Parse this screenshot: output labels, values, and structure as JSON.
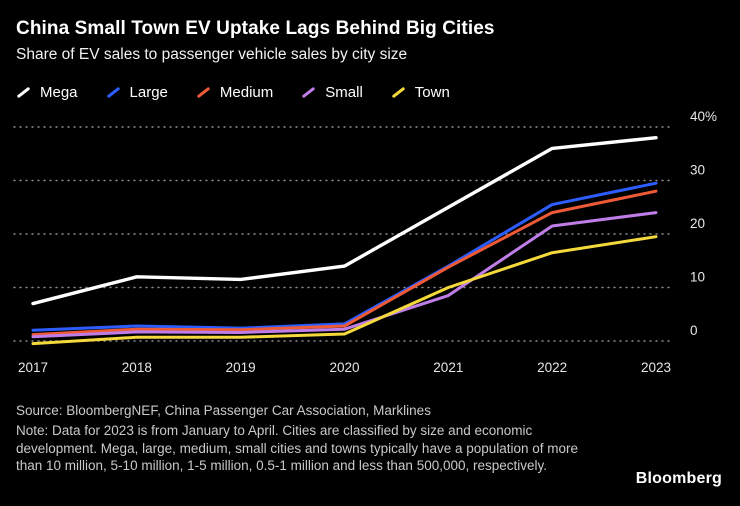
{
  "header": {
    "title": "China Small Town EV Uptake Lags Behind Big Cities",
    "subtitle": "Share of EV sales to passenger vehicle sales by city size"
  },
  "chart_data": {
    "type": "line",
    "title": "China Small Town EV Uptake Lags Behind Big Cities",
    "subtitle": "Share of EV sales to passenger vehicle sales by city size",
    "categories": [
      "2017",
      "2018",
      "2019",
      "2020",
      "2021",
      "2022",
      "2023"
    ],
    "series": [
      {
        "name": "Mega",
        "color": "#ffffff",
        "values": [
          7,
          12,
          11.5,
          14,
          25,
          36,
          38
        ]
      },
      {
        "name": "Large",
        "color": "#2d5dff",
        "values": [
          2,
          2.8,
          2.4,
          3.2,
          14,
          25.5,
          29.5
        ]
      },
      {
        "name": "Medium",
        "color": "#ee5a36",
        "values": [
          1.2,
          2.2,
          2.1,
          2.8,
          13.8,
          24,
          28
        ]
      },
      {
        "name": "Small",
        "color": "#bf7de8",
        "values": [
          0.8,
          1.7,
          1.6,
          2.2,
          8.5,
          21.5,
          24
        ]
      },
      {
        "name": "Town",
        "color": "#f3d93b",
        "values": [
          -0.5,
          0.7,
          0.7,
          1.3,
          10,
          16.5,
          19.5
        ]
      }
    ],
    "xlabel": "",
    "ylabel": "",
    "ylim": [
      -2,
      40
    ],
    "yticks": [
      0,
      10,
      20,
      30,
      40
    ],
    "ytick_labels": [
      "0",
      "10",
      "20",
      "30",
      "40%"
    ],
    "grid": "dotted-horizontal",
    "legend_position": "top-left",
    "background": "#000000",
    "axis_text_color": "#e6e6e6",
    "grid_color": "rgba(255,255,255,0.55)"
  },
  "footer": {
    "source": "Source: BloombergNEF, China Passenger Car Association, Marklines",
    "note": "Note: Data for 2023 is from January to April. Cities are classified by size and economic development. Mega, large, medium, small cities and towns typically have a population of more than 10 million, 5-10 million, 1-5 million, 0.5-1 million and less than 500,000, respectively.",
    "logo": "Bloomberg"
  }
}
